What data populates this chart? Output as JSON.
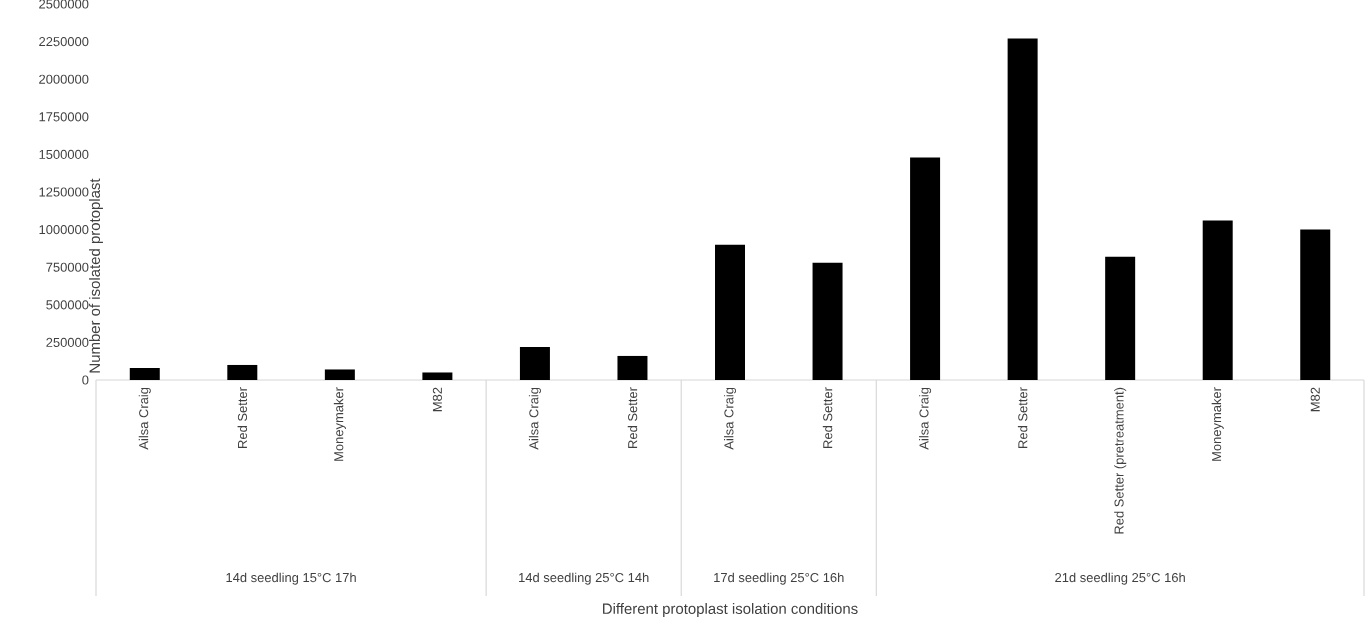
{
  "chart_data": {
    "type": "bar",
    "xlabel": "Different protoplast isolation conditions",
    "ylabel": "Number of isolated protoplast",
    "categories": [
      "Ailsa Craig",
      "Red Setter",
      "Moneymaker",
      "M82",
      "Ailsa Craig",
      "Red Setter",
      "Ailsa Craig",
      "Red Setter",
      "Ailsa Craig",
      "Red Setter",
      "Red Setter (pretreatment)",
      "Moneymaker",
      "M82"
    ],
    "values": [
      80000,
      100000,
      70000,
      50000,
      220000,
      160000,
      900000,
      780000,
      1480000,
      2270000,
      820000,
      1060000,
      1000000
    ],
    "color": "#000000",
    "ylim": [
      0,
      2500000
    ],
    "yticks": [
      0,
      250000,
      500000,
      750000,
      1000000,
      1250000,
      1500000,
      1750000,
      2000000,
      2250000,
      2500000
    ],
    "annotations": [
      "14d seedling 15°C 17h",
      "14d seedling 25°C 14h",
      "17d seedling 25°C 16h",
      "21d seedling 25°C 16h"
    ]
  }
}
